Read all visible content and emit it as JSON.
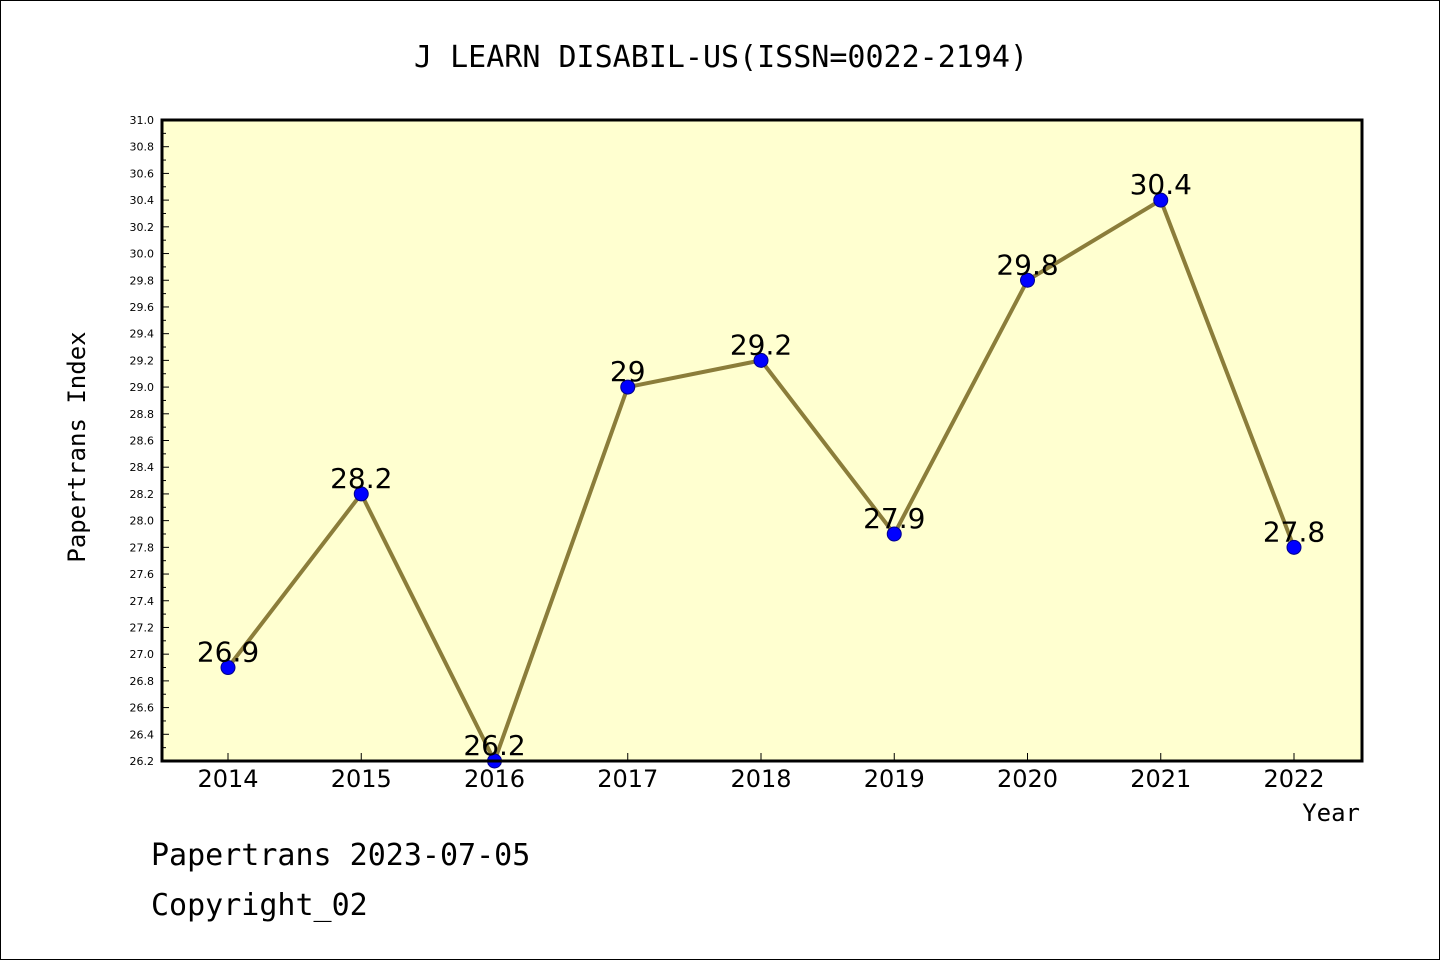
{
  "chart_data": {
    "type": "line",
    "title": "J LEARN DISABIL-US(ISSN=0022-2194)",
    "xlabel": "Year",
    "ylabel": "Papertrans Index",
    "categories": [
      "2014",
      "2015",
      "2016",
      "2017",
      "2018",
      "2019",
      "2020",
      "2021",
      "2022"
    ],
    "values": [
      26.9,
      28.2,
      26.2,
      29,
      29.2,
      27.9,
      29.8,
      30.4,
      27.8
    ],
    "data_labels": [
      "26.9",
      "28.2",
      "26.2",
      "29",
      "29.2",
      "27.9",
      "29.8",
      "30.4",
      "27.8"
    ],
    "ylim": [
      26.2,
      31.0
    ],
    "y_ticks": [
      "26.2",
      "26.4",
      "26.6",
      "26.8",
      "27.0",
      "27.2",
      "27.4",
      "27.6",
      "27.8",
      "28.0",
      "28.2",
      "28.4",
      "28.6",
      "28.8",
      "29.0",
      "29.2",
      "29.4",
      "29.6",
      "29.8",
      "30.0",
      "30.2",
      "30.4",
      "30.6",
      "30.8",
      "31.0"
    ],
    "grid": false,
    "legend": "none",
    "colors": {
      "plot_background": "#ffffd0",
      "line": "#8b7d3a",
      "marker": "#0000ff"
    }
  },
  "footer": {
    "line1": "Papertrans 2023-07-05",
    "line2": "Copyright_02"
  }
}
